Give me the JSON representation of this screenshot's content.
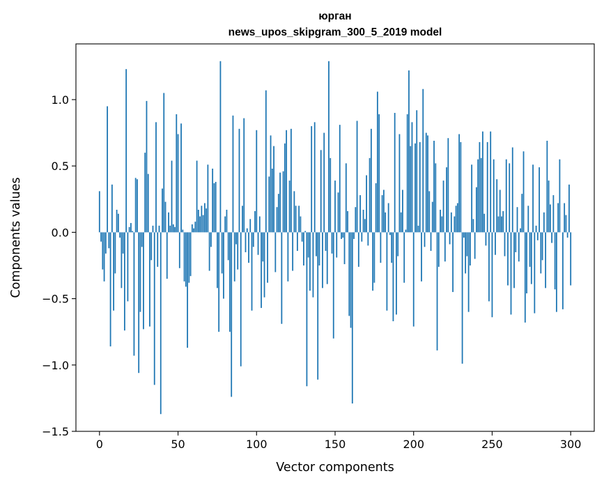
{
  "chart_data": {
    "type": "bar",
    "title_line1": "юрган",
    "title_line2": "news_upos_skipgram_300_5_2019 model",
    "xlabel": "Vector components",
    "ylabel": "Components values",
    "xlim": [
      -15,
      315
    ],
    "ylim": [
      -1.5,
      1.42
    ],
    "xticks": [
      0,
      50,
      100,
      150,
      200,
      250,
      300
    ],
    "xtick_labels": [
      "0",
      "50",
      "100",
      "150",
      "200",
      "250",
      "300"
    ],
    "yticks": [
      -1.5,
      -1.0,
      -0.5,
      0.0,
      0.5,
      1.0
    ],
    "ytick_labels": [
      "−1.5",
      "−1.0",
      "−0.5",
      "0.0",
      "0.5",
      "1.0"
    ],
    "bar_color": "#1f77b4",
    "values": [
      0.31,
      -0.07,
      -0.28,
      -0.37,
      -0.16,
      0.95,
      -0.12,
      -0.86,
      0.36,
      -0.59,
      -0.31,
      0.17,
      0.14,
      -0.04,
      -0.42,
      -0.16,
      -0.74,
      1.23,
      -0.52,
      0.04,
      0.07,
      0.01,
      -0.93,
      0.41,
      0.4,
      -1.06,
      -0.6,
      -0.11,
      -0.73,
      0.6,
      0.99,
      0.44,
      -0.71,
      -0.21,
      0.05,
      -1.15,
      0.83,
      -0.26,
      0.05,
      -1.37,
      0.33,
      1.05,
      0.23,
      -0.35,
      0.15,
      0.05,
      0.54,
      0.06,
      0.04,
      0.89,
      0.74,
      -0.27,
      0.82,
      0.02,
      -0.37,
      -0.41,
      -0.87,
      -0.38,
      -0.33,
      0.06,
      0.03,
      0.08,
      0.54,
      0.17,
      0.12,
      0.2,
      0.13,
      0.22,
      0.18,
      0.51,
      -0.29,
      -0.11,
      0.48,
      0.37,
      0.38,
      -0.42,
      -0.75,
      1.29,
      -0.31,
      -0.5,
      0.12,
      0.17,
      -0.21,
      -0.75,
      -1.24,
      0.88,
      -0.37,
      -0.09,
      -0.28,
      0.78,
      -1.01,
      0.2,
      0.86,
      -0.15,
      0.03,
      -0.23,
      0.1,
      -0.59,
      -0.11,
      0.16,
      0.77,
      -0.17,
      0.12,
      -0.57,
      -0.22,
      -0.49,
      1.07,
      -0.38,
      0.42,
      0.73,
      0.48,
      0.65,
      -0.3,
      0.19,
      0.29,
      0.45,
      -0.69,
      0.46,
      0.67,
      0.77,
      -0.37,
      0.39,
      0.78,
      -0.29,
      0.31,
      0.2,
      -0.14,
      0.2,
      0.12,
      -0.07,
      -0.25,
      0.01,
      -1.16,
      -0.19,
      -0.44,
      0.8,
      -0.49,
      0.83,
      -0.18,
      -1.11,
      -0.25,
      0.62,
      -0.42,
      0.75,
      -0.14,
      -0.39,
      1.29,
      0.56,
      -0.16,
      -0.8,
      0.39,
      -0.19,
      0.3,
      0.81,
      -0.05,
      -0.04,
      -0.24,
      0.52,
      0.16,
      -0.63,
      -0.72,
      -1.29,
      -0.05,
      0.19,
      0.84,
      -0.26,
      0.28,
      -0.07,
      0.17,
      0.1,
      0.43,
      -0.1,
      0.56,
      0.78,
      -0.44,
      -0.38,
      0.37,
      1.06,
      0.89,
      -0.23,
      0.28,
      0.32,
      0.15,
      -0.59,
      0.22,
      -0.02,
      -0.23,
      -0.67,
      0.9,
      -0.62,
      -0.18,
      0.74,
      0.15,
      0.32,
      -0.38,
      0.02,
      0.89,
      1.22,
      0.65,
      0.83,
      -0.71,
      0.67,
      0.92,
      0.05,
      0.68,
      -0.37,
      1.08,
      -0.11,
      0.75,
      0.73,
      0.31,
      -0.14,
      0.23,
      0.69,
      0.52,
      -0.89,
      -0.26,
      0.17,
      0.12,
      0.39,
      -0.22,
      0.49,
      0.71,
      -0.09,
      0.15,
      -0.45,
      0.12,
      0.2,
      0.22,
      0.74,
      0.68,
      -0.99,
      -0.04,
      -0.31,
      -0.18,
      -0.6,
      -0.25,
      0.51,
      0.1,
      -0.2,
      0.34,
      0.55,
      0.68,
      0.56,
      0.76,
      0.14,
      -0.1,
      0.68,
      -0.52,
      0.76,
      -0.64,
      0.55,
      -0.17,
      0.4,
      0.12,
      0.32,
      0.12,
      0.16,
      -0.18,
      0.55,
      -0.4,
      0.52,
      -0.62,
      0.64,
      -0.42,
      -0.15,
      0.19,
      -0.22,
      0.03,
      0.29,
      0.61,
      -0.68,
      -0.46,
      0.2,
      -0.26,
      -0.39,
      0.51,
      -0.61,
      0.05,
      -0.06,
      0.49,
      -0.31,
      -0.21,
      0.15,
      -0.42,
      0.69,
      0.39,
      0.21,
      -0.08,
      0.28,
      -0.43,
      -0.6,
      0.22,
      0.55,
      0.0,
      -0.58,
      0.22,
      0.13,
      -0.04,
      0.36,
      -0.4
    ]
  }
}
